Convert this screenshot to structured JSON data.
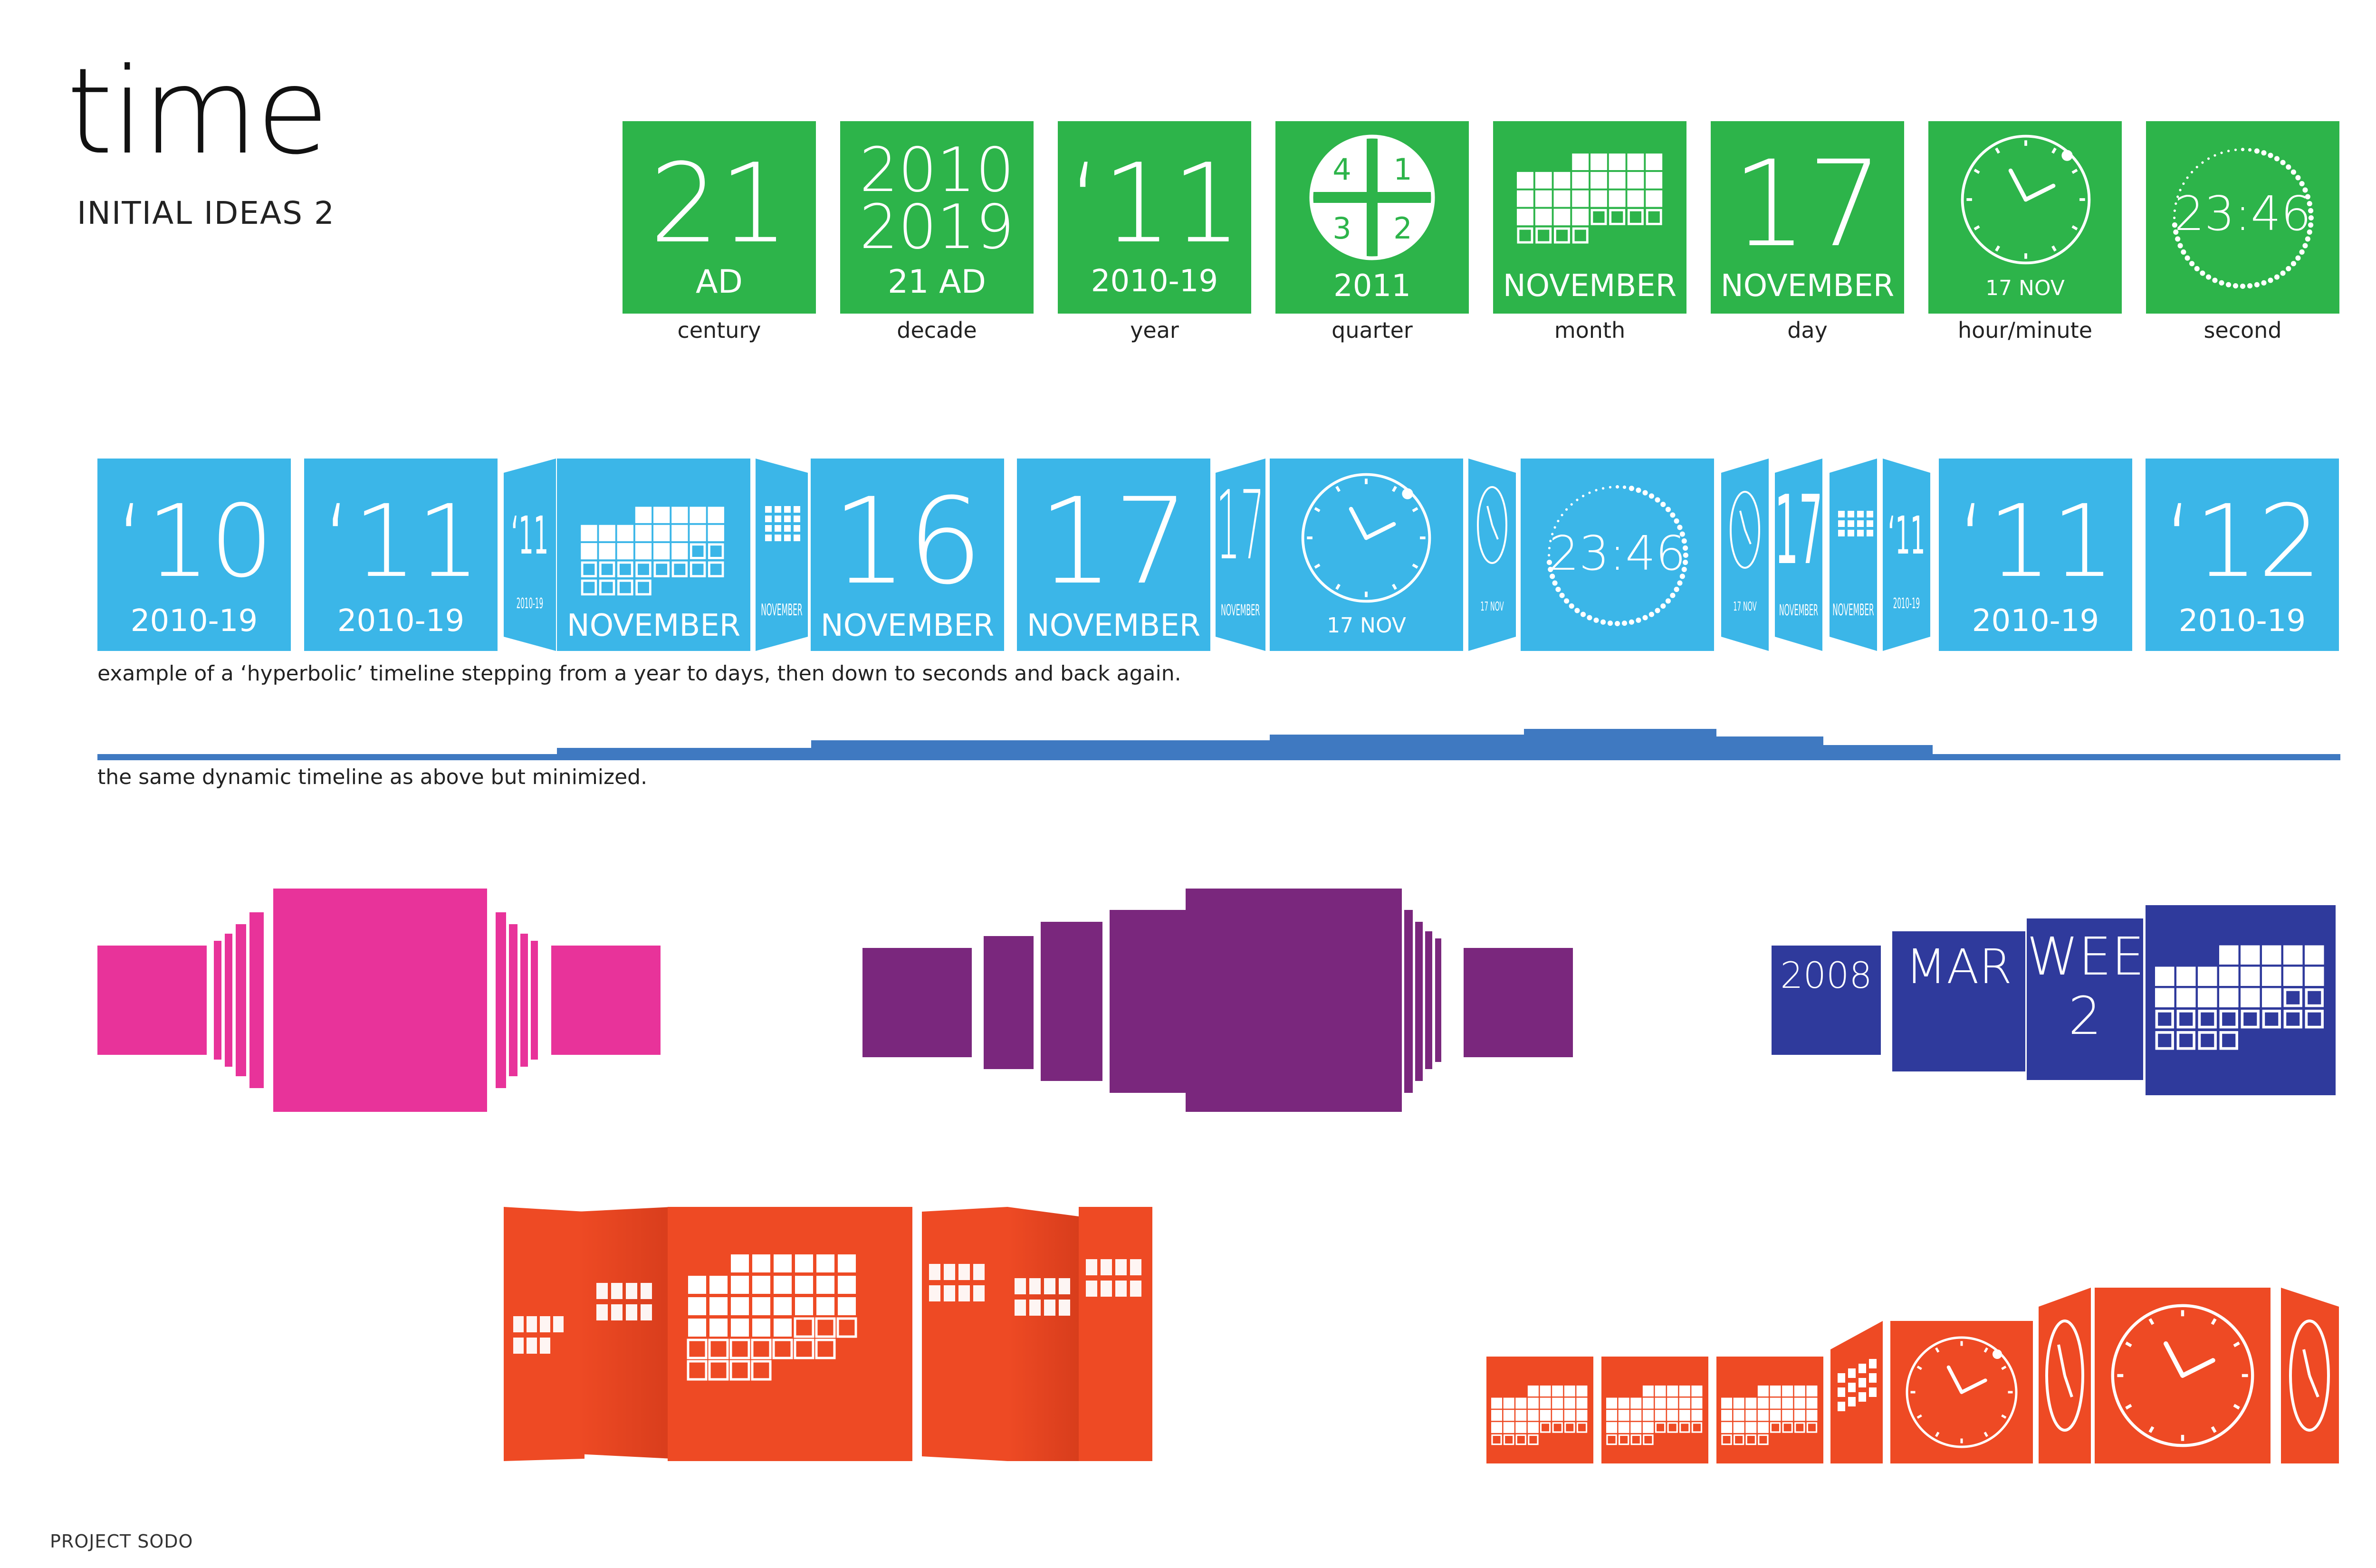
{
  "page": {
    "title": "time",
    "subtitle": "INITIAL IDEAS 2",
    "footer": "PROJECT SODO"
  },
  "colors": {
    "green": "#2db44a",
    "blue": "#3bb6e8",
    "pink": "#e8339a",
    "purple": "#7a277d",
    "navy": "#2f3a9c",
    "orange": "#ee4a24",
    "timeline_bar": "#3f79c1"
  },
  "tiles_row": [
    {
      "top": "21",
      "bottom": "AD",
      "label": "century",
      "kind": "text"
    },
    {
      "top": "2010",
      "top2": "2019",
      "bottom": "21 AD",
      "label": "decade",
      "kind": "text"
    },
    {
      "top": "‘11",
      "bottom": "2010-19",
      "label": "year",
      "kind": "text"
    },
    {
      "q1": "4",
      "q2": "1",
      "q3": "3",
      "q4": "2",
      "bottom": "2011",
      "label": "quarter",
      "kind": "quarter-icon"
    },
    {
      "bottom": "NOVEMBER",
      "label": "month",
      "kind": "calendar-icon"
    },
    {
      "top": "17",
      "bottom": "NOVEMBER",
      "label": "day",
      "kind": "text"
    },
    {
      "bottom": "17 NOV",
      "label": "hour/minute",
      "kind": "clock-icon"
    },
    {
      "top": "23:46",
      "label": "second",
      "kind": "seconds-dial-icon"
    }
  ],
  "timeline": {
    "caption": "example of a ‘hyperbolic’ timeline stepping from a year to days, then down to seconds and back again.",
    "tiles": [
      {
        "top": "‘10",
        "bottom": "2010-19"
      },
      {
        "top": "‘11",
        "bottom": "2010-19"
      },
      {
        "top": "‘11",
        "bottom": "2010-19"
      },
      {
        "bottom": "NOVEMBER",
        "kind": "calendar-icon"
      },
      {
        "bottom": "NOVEMBER",
        "kind": "calendar-icon"
      },
      {
        "top": "16",
        "bottom": "NOVEMBER"
      },
      {
        "top": "17",
        "bottom": "NOVEMBER"
      },
      {
        "top": "17",
        "bottom": "NOVEMBER"
      },
      {
        "bottom": "17 NOV",
        "kind": "clock-icon"
      },
      {
        "bottom": "17 NOV",
        "kind": "clock-icon"
      },
      {
        "top": "23:46",
        "kind": "seconds-dial-icon"
      },
      {
        "bottom": "17 NOV",
        "kind": "clock-icon"
      },
      {
        "top": "17",
        "bottom": "NOVEMBER"
      },
      {
        "bottom": "NOVEMBER",
        "kind": "calendar-icon"
      },
      {
        "top": "‘11",
        "bottom": "2010-19"
      },
      {
        "top": "‘11",
        "bottom": "2010-19"
      },
      {
        "top": "‘12",
        "bottom": "2010-19"
      }
    ]
  },
  "minimized": {
    "caption": "the same dynamic timeline as above but minimized."
  },
  "navy_strip": {
    "year": "2008",
    "month": "MAR",
    "week_line1": "WEE",
    "week_line2": "2"
  }
}
